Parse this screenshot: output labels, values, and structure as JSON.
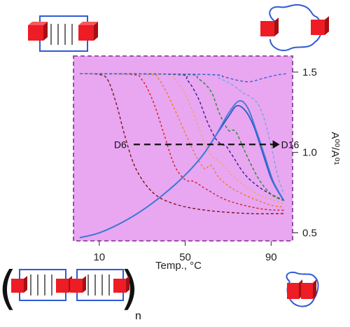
{
  "colors": {
    "plot_bg": "#e8a7f0",
    "frame": "#7a2f88",
    "block": "#ee1c24",
    "block_dark": "#a60f14",
    "strand": "#2f5bd6"
  },
  "icons": {
    "duplex_top_left": "duplex-with-red-blocks-icon",
    "loop_top_right": "single-strand-loop-icon",
    "polymer_bottom_left": "polymer-duplex-chain-icon",
    "loop_bottom_right": "collapsed-loop-icon"
  },
  "labels": {
    "polymer_subscript": "n",
    "arrow_start": "D6",
    "arrow_end": "D16"
  },
  "chart_data": {
    "type": "line",
    "xlabel": "Temp., °C",
    "ylabel": "A⁰⁰/A⁰¹",
    "xlim": [
      -2,
      100
    ],
    "ylim": [
      0.45,
      1.6
    ],
    "x_ticks": [
      10,
      50,
      90
    ],
    "x_tick_labels": [
      "10",
      "50",
      "90"
    ],
    "y_ticks": [
      0.5,
      1.0,
      1.5
    ],
    "y_tick_labels": [
      "0.5",
      "1.0",
      "1.5"
    ],
    "grid": false,
    "annotation_arrow": {
      "from": {
        "x": 26,
        "y": 1.05
      },
      "to": {
        "x": 94,
        "y": 1.05
      }
    },
    "series": [
      {
        "color": "#7a1420",
        "dash": "4,3",
        "points": [
          [
            1,
            1.49
          ],
          [
            10,
            1.485
          ],
          [
            14,
            1.45
          ],
          [
            18,
            1.3
          ],
          [
            22,
            1.1
          ],
          [
            27,
            0.9
          ],
          [
            35,
            0.75
          ],
          [
            45,
            0.68
          ],
          [
            60,
            0.64
          ],
          [
            80,
            0.62
          ],
          [
            96,
            0.62
          ]
        ]
      },
      {
        "color": "#d71a1a",
        "dash": "3,3",
        "points": [
          [
            1,
            1.49
          ],
          [
            25,
            1.485
          ],
          [
            30,
            1.45
          ],
          [
            35,
            1.32
          ],
          [
            40,
            1.12
          ],
          [
            45,
            0.92
          ],
          [
            50,
            0.83
          ],
          [
            54,
            0.82
          ],
          [
            60,
            0.77
          ],
          [
            70,
            0.7
          ],
          [
            85,
            0.65
          ],
          [
            96,
            0.64
          ]
        ]
      },
      {
        "color": "#f07a1f",
        "dash": "3,3",
        "points": [
          [
            1,
            1.49
          ],
          [
            33,
            1.485
          ],
          [
            38,
            1.45
          ],
          [
            44,
            1.3
          ],
          [
            50,
            1.12
          ],
          [
            55,
            0.98
          ],
          [
            59,
            0.9
          ],
          [
            62,
            0.92
          ],
          [
            66,
            0.84
          ],
          [
            74,
            0.76
          ],
          [
            88,
            0.68
          ],
          [
            96,
            0.66
          ]
        ]
      },
      {
        "color": "#f0a46a",
        "dash": "3,3",
        "points": [
          [
            1,
            1.49
          ],
          [
            40,
            1.485
          ],
          [
            45,
            1.46
          ],
          [
            50,
            1.36
          ],
          [
            55,
            1.2
          ],
          [
            59,
            1.06
          ],
          [
            62,
            0.98
          ],
          [
            64,
            0.96
          ],
          [
            67,
            0.93
          ],
          [
            74,
            0.83
          ],
          [
            84,
            0.74
          ],
          [
            96,
            0.68
          ]
        ]
      },
      {
        "color": "#3a1e8c",
        "dash": "4,3",
        "points": [
          [
            1,
            1.49
          ],
          [
            46,
            1.485
          ],
          [
            51,
            1.45
          ],
          [
            56,
            1.34
          ],
          [
            60,
            1.2
          ],
          [
            64,
            1.09
          ],
          [
            67,
            1.05
          ],
          [
            69,
            1.04
          ],
          [
            72,
            0.98
          ],
          [
            78,
            0.86
          ],
          [
            86,
            0.77
          ],
          [
            96,
            0.7
          ]
        ]
      },
      {
        "color": "#1f8a30",
        "dash": "4,3",
        "points": [
          [
            1,
            1.49
          ],
          [
            50,
            1.485
          ],
          [
            56,
            1.46
          ],
          [
            62,
            1.38
          ],
          [
            66,
            1.24
          ],
          [
            70,
            1.14
          ],
          [
            72,
            1.14
          ],
          [
            74,
            1.12
          ],
          [
            78,
            1.0
          ],
          [
            84,
            0.84
          ],
          [
            90,
            0.74
          ],
          [
            96,
            0.7
          ]
        ]
      },
      {
        "color": "#6fa8e8",
        "dash": "4,3",
        "points": [
          [
            1,
            1.49
          ],
          [
            60,
            1.485
          ],
          [
            66,
            1.46
          ],
          [
            72,
            1.42
          ],
          [
            77,
            1.37
          ],
          [
            80,
            1.35
          ],
          [
            84,
            1.3
          ],
          [
            87,
            1.2
          ],
          [
            90,
            1.04
          ],
          [
            93,
            0.86
          ],
          [
            96,
            0.74
          ]
        ]
      },
      {
        "color": "#3b5fd0",
        "dash": "4,3",
        "points": [
          [
            1,
            1.49
          ],
          [
            60,
            1.485
          ],
          [
            68,
            1.47
          ],
          [
            74,
            1.45
          ],
          [
            80,
            1.44
          ],
          [
            86,
            1.46
          ],
          [
            92,
            1.48
          ],
          [
            97,
            1.49
          ]
        ]
      },
      {
        "color": "#2a5ac8",
        "dash": "",
        "points": [
          [
            1,
            0.47
          ],
          [
            10,
            0.5
          ],
          [
            20,
            0.56
          ],
          [
            30,
            0.64
          ],
          [
            40,
            0.74
          ],
          [
            50,
            0.86
          ],
          [
            58,
            0.98
          ],
          [
            64,
            1.1
          ],
          [
            70,
            1.22
          ],
          [
            74,
            1.29
          ],
          [
            78,
            1.26
          ],
          [
            82,
            1.16
          ],
          [
            86,
            1.0
          ],
          [
            90,
            0.84
          ],
          [
            94,
            0.74
          ],
          [
            96,
            0.7
          ]
        ]
      },
      {
        "color": "#3b7ad8",
        "dash": "",
        "points": [
          [
            1,
            0.47
          ],
          [
            10,
            0.5
          ],
          [
            20,
            0.56
          ],
          [
            30,
            0.64
          ],
          [
            40,
            0.74
          ],
          [
            50,
            0.86
          ],
          [
            58,
            0.98
          ],
          [
            64,
            1.1
          ],
          [
            70,
            1.24
          ],
          [
            75,
            1.32
          ],
          [
            79,
            1.28
          ],
          [
            83,
            1.14
          ],
          [
            87,
            0.98
          ],
          [
            91,
            0.82
          ],
          [
            96,
            0.7
          ]
        ]
      }
    ]
  }
}
